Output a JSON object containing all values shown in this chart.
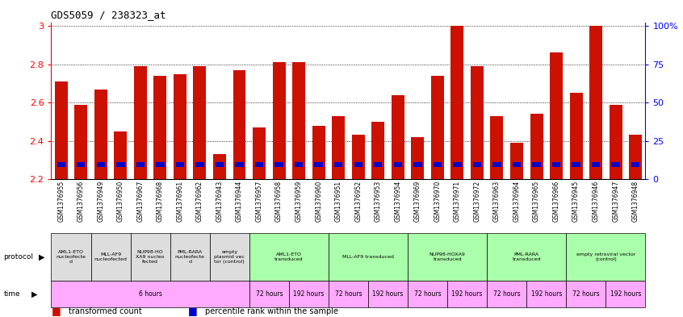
{
  "title": "GDS5059 / 238323_at",
  "sample_ids": [
    "GSM1376955",
    "GSM1376956",
    "GSM1376949",
    "GSM1376950",
    "GSM1376967",
    "GSM1376968",
    "GSM1376961",
    "GSM1376962",
    "GSM1376943",
    "GSM1376944",
    "GSM1376957",
    "GSM1376958",
    "GSM1376959",
    "GSM1376960",
    "GSM1376951",
    "GSM1376952",
    "GSM1376953",
    "GSM1376954",
    "GSM1376969",
    "GSM1376970",
    "GSM1376971",
    "GSM1376972",
    "GSM1376963",
    "GSM1376964",
    "GSM1376965",
    "GSM1376966",
    "GSM1376945",
    "GSM1376946",
    "GSM1376947",
    "GSM1376948"
  ],
  "bar_values": [
    2.71,
    2.59,
    2.67,
    2.45,
    2.79,
    2.74,
    2.75,
    2.79,
    2.33,
    2.77,
    2.47,
    2.81,
    2.81,
    2.48,
    2.53,
    2.43,
    2.5,
    2.64,
    2.42,
    2.74,
    3.0,
    2.79,
    2.53,
    2.39,
    2.54,
    2.86,
    2.65,
    3.0,
    2.59,
    2.43
  ],
  "ymin": 2.2,
  "ymax": 3.0,
  "bar_color": "#cc1100",
  "blue_color": "#0000cc",
  "bg_color": "#ffffff",
  "protocol_row": [
    {
      "label": "AML1-ETO\nnucleofecte\nd",
      "start": 0,
      "end": 2,
      "color": "#dddddd"
    },
    {
      "label": "MLL-AF9\nnucleofected",
      "start": 2,
      "end": 4,
      "color": "#dddddd"
    },
    {
      "label": "NUP98-HO\nXA9 nucleo\nfected",
      "start": 4,
      "end": 6,
      "color": "#dddddd"
    },
    {
      "label": "PML-RARA\nnucleofecte\nd",
      "start": 6,
      "end": 8,
      "color": "#dddddd"
    },
    {
      "label": "empty\nplasmid vec\ntor (control)",
      "start": 8,
      "end": 10,
      "color": "#dddddd"
    },
    {
      "label": "AML1-ETO\ntransduced",
      "start": 10,
      "end": 14,
      "color": "#aaffaa"
    },
    {
      "label": "MLL-AF9 transduced",
      "start": 14,
      "end": 18,
      "color": "#aaffaa"
    },
    {
      "label": "NUP98-HOXA9\ntransduced",
      "start": 18,
      "end": 22,
      "color": "#aaffaa"
    },
    {
      "label": "PML-RARA\ntransduced",
      "start": 22,
      "end": 26,
      "color": "#aaffaa"
    },
    {
      "label": "empty retroviral vector\n(control)",
      "start": 26,
      "end": 30,
      "color": "#aaffaa"
    }
  ],
  "time_row": [
    {
      "label": "6 hours",
      "start": 0,
      "end": 10,
      "color": "#ffaaff"
    },
    {
      "label": "72 hours",
      "start": 10,
      "end": 12,
      "color": "#ffaaff"
    },
    {
      "label": "192 hours",
      "start": 12,
      "end": 14,
      "color": "#ffaaff"
    },
    {
      "label": "72 hours",
      "start": 14,
      "end": 16,
      "color": "#ffaaff"
    },
    {
      "label": "192 hours",
      "start": 16,
      "end": 18,
      "color": "#ffaaff"
    },
    {
      "label": "72 hours",
      "start": 18,
      "end": 20,
      "color": "#ffaaff"
    },
    {
      "label": "192 hours",
      "start": 20,
      "end": 22,
      "color": "#ffaaff"
    },
    {
      "label": "72 hours",
      "start": 22,
      "end": 24,
      "color": "#ffaaff"
    },
    {
      "label": "192 hours",
      "start": 24,
      "end": 26,
      "color": "#ffaaff"
    },
    {
      "label": "72 hours",
      "start": 26,
      "end": 28,
      "color": "#ffaaff"
    },
    {
      "label": "192 hours",
      "start": 28,
      "end": 30,
      "color": "#ffaaff"
    }
  ]
}
